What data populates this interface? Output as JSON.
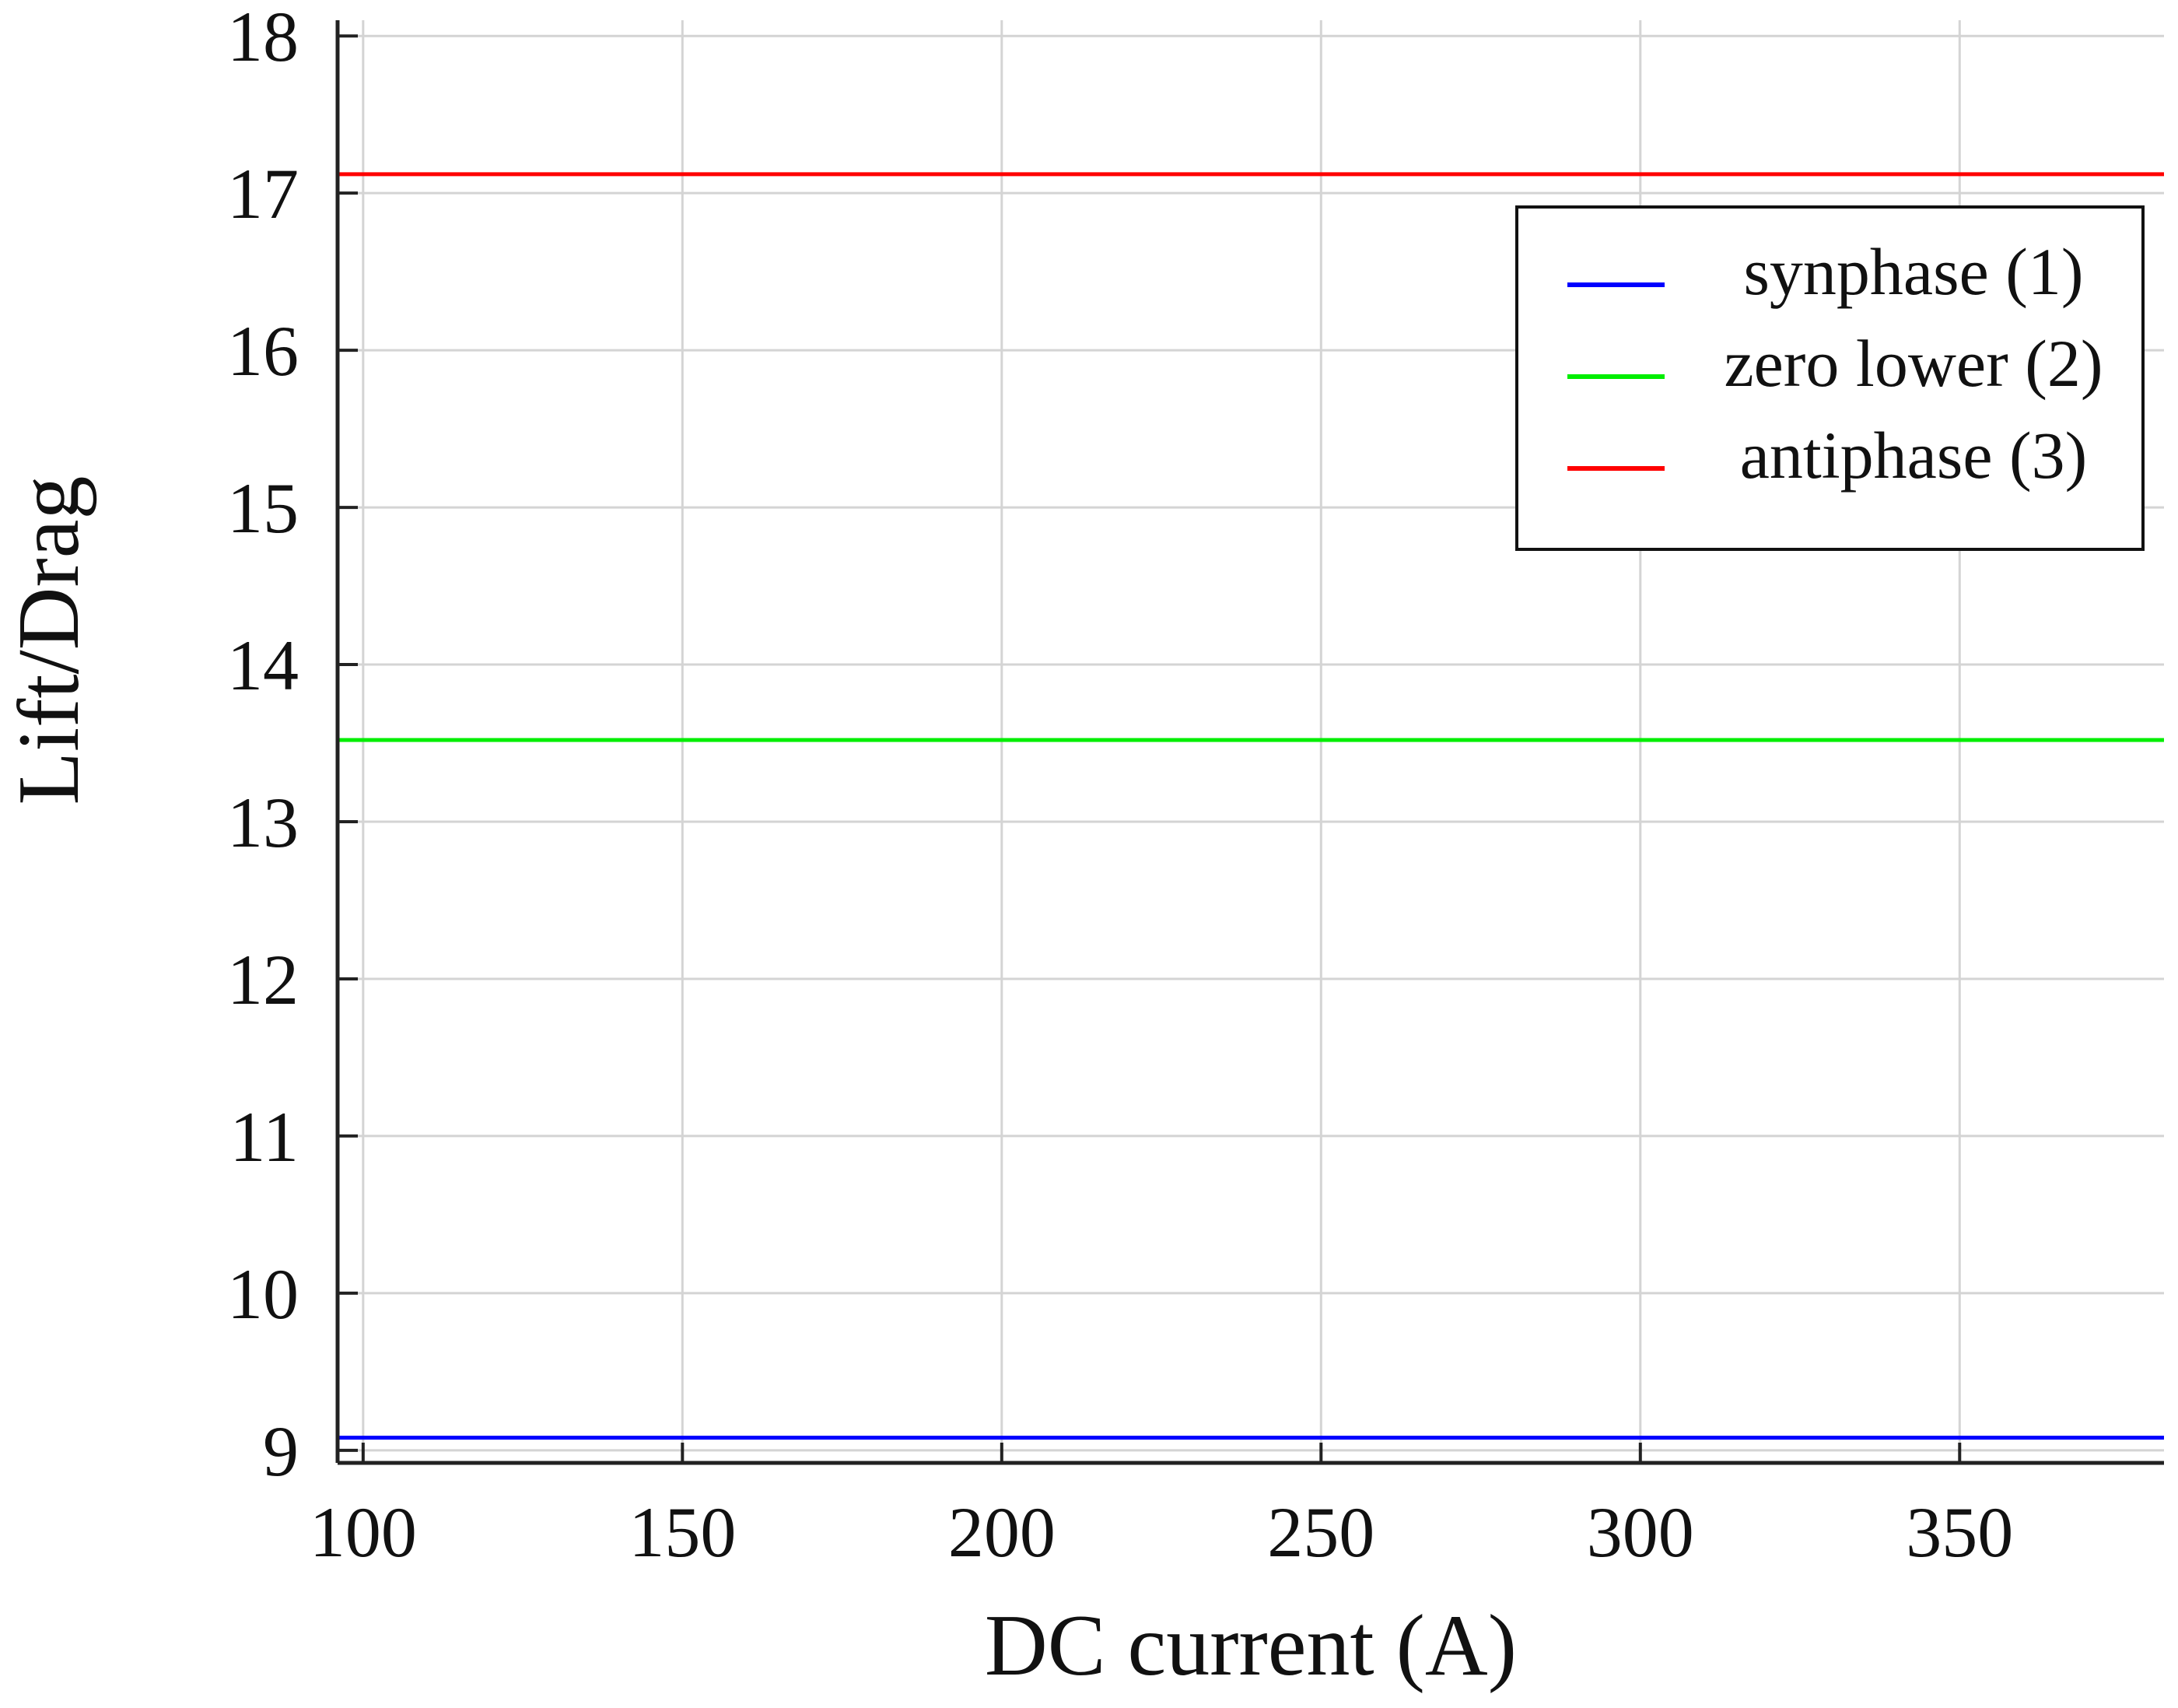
{
  "chart_data": {
    "type": "line",
    "title": "",
    "xlabel": "DC current (A)",
    "ylabel": "Lift/Drag",
    "xlim": [
      96,
      382
    ],
    "ylim": [
      8.92,
      18.1
    ],
    "xticks": [
      100,
      150,
      200,
      250,
      300,
      350
    ],
    "yticks": [
      9,
      10,
      11,
      12,
      13,
      14,
      15,
      16,
      17,
      18
    ],
    "grid": true,
    "legend_position": "top-right",
    "series": [
      {
        "name": "synphase (1)",
        "color": "#0000ff",
        "x": [
          96,
          382
        ],
        "y": [
          9.08,
          9.08
        ]
      },
      {
        "name": "zero lower (2)",
        "color": "#00ee00",
        "x": [
          96,
          382
        ],
        "y": [
          13.52,
          13.52
        ]
      },
      {
        "name": "antiphase (3)",
        "color": "#ff0000",
        "x": [
          96,
          382
        ],
        "y": [
          17.12,
          17.12
        ]
      }
    ]
  }
}
